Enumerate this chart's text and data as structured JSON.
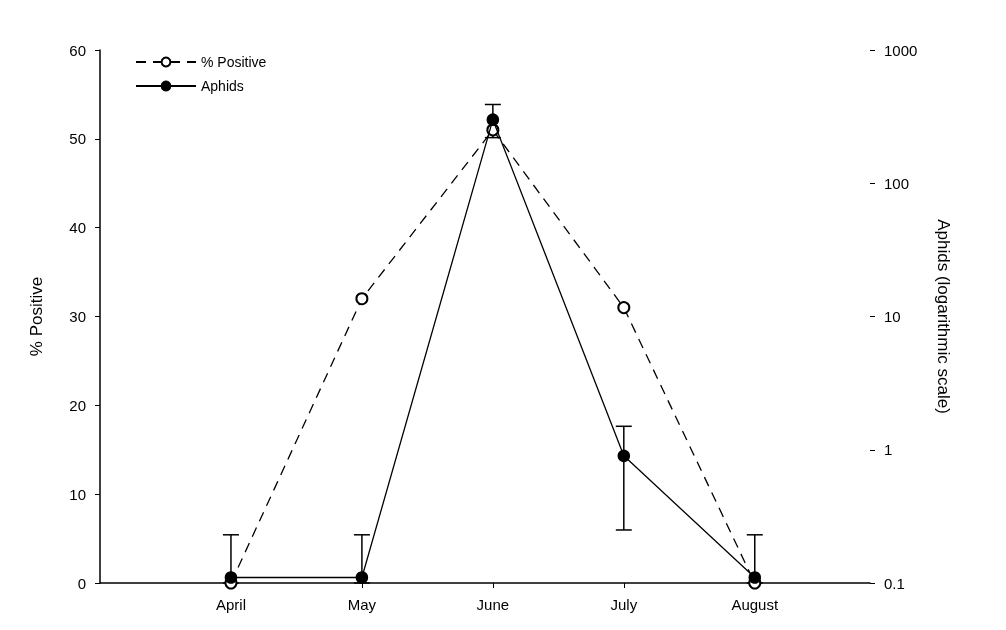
{
  "chart_data": {
    "type": "line",
    "categories": [
      "April",
      "May",
      "June",
      "July",
      "August"
    ],
    "ylabel": "% Positive",
    "y2label": "Aphids (logarithmic scale)",
    "ylim": [
      0,
      60
    ],
    "yticks": [
      0,
      10,
      20,
      30,
      40,
      50,
      60
    ],
    "y2lim": [
      0.1,
      1000
    ],
    "y2ticks": [
      0.1,
      1,
      10,
      100,
      1000
    ],
    "log": "y2",
    "series": [
      {
        "name": "% Positive",
        "color": "#000000",
        "values": [
          0,
          32,
          51,
          31,
          0
        ],
        "line_style": "dashed",
        "marker": "open circle"
      },
      {
        "name": "Aphids",
        "color": "#000000",
        "values": [
          0.11,
          0.11,
          300,
          0.9,
          0.11
        ],
        "axis": "y2",
        "line_style": "solid",
        "marker": "circle",
        "errors": [
          [
            0.1,
            0.23
          ],
          [
            0.1,
            0.23
          ],
          [
            220,
            390
          ],
          [
            0.25,
            1.5
          ],
          [
            0.1,
            0.23
          ]
        ]
      }
    ],
    "legend": "top left",
    "grid": false
  }
}
